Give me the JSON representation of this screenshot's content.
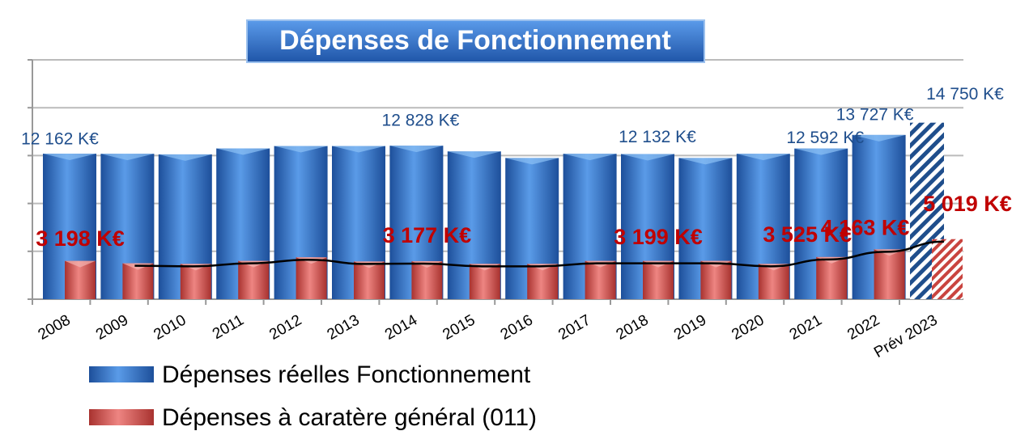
{
  "chart_data": {
    "type": "bar",
    "title": "Dépenses de Fonctionnement",
    "categories": [
      "2008",
      "2009",
      "2010",
      "2011",
      "2012",
      "2013",
      "2014",
      "2015",
      "2016",
      "2017",
      "2018",
      "2019",
      "2020",
      "2021",
      "2022",
      "Prév 2023"
    ],
    "series": [
      {
        "name": "Dépenses réelles Fonctionnement",
        "color": "#2f6fc4",
        "values": [
          12162,
          12150,
          12100,
          12600,
          12800,
          12800,
          12828,
          12350,
          11800,
          12150,
          12132,
          11800,
          12150,
          12592,
          13727,
          14750
        ],
        "value_labels": [
          "12 162 K€",
          null,
          null,
          null,
          null,
          null,
          "12 828 K€",
          null,
          null,
          null,
          "12 132 K€",
          null,
          null,
          "12 592 K€",
          "13 727 K€",
          "14 750 K€"
        ]
      },
      {
        "name": "Dépenses à caratère général (011)",
        "color": "#d9534f",
        "values": [
          3198,
          3000,
          2950,
          3200,
          3500,
          3150,
          3177,
          2950,
          2950,
          3200,
          3199,
          3200,
          2950,
          3525,
          4163,
          5019
        ],
        "value_labels": [
          "3 198 K€",
          null,
          null,
          null,
          null,
          null,
          "3 177 K€",
          null,
          null,
          null,
          "3 199 K€",
          null,
          null,
          "3 525 K€",
          "4 163 K€",
          "5 019 K€"
        ]
      }
    ],
    "ylim": [
      0,
      20000
    ],
    "yticks": [
      0,
      4000,
      8000,
      12000,
      16000,
      20000
    ],
    "grid": true
  }
}
